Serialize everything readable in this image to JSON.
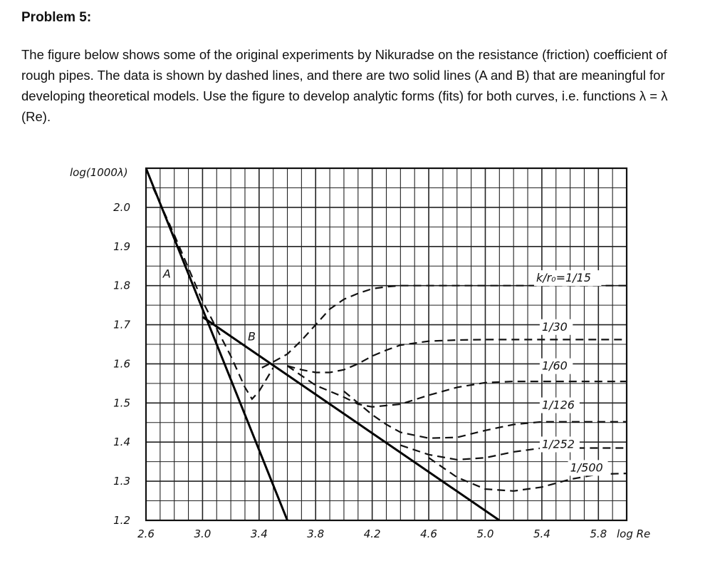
{
  "problem": {
    "title": "Problem 5:",
    "text": "The figure below shows some of the original experiments by Nikuradse on the resistance (friction) coefficient of rough pipes. The data is shown by dashed lines, and there are two solid lines (A and B) that are meaningful for developing theoretical models. Use the figure to develop analytic forms (fits) for both curves, i.e. functions  λ = λ (Re)."
  },
  "chart_data": {
    "type": "line",
    "title": "",
    "xlabel": "log Re",
    "ylabel": "log(1000λ)",
    "xlim": [
      2.6,
      6.0
    ],
    "ylim": [
      1.2,
      2.1
    ],
    "grid": true,
    "x_ticks": [
      "2.6",
      "3.0",
      "3.4",
      "3.8",
      "4.2",
      "4.6",
      "5.0",
      "5.4",
      "5.8"
    ],
    "y_ticks": [
      "1.2",
      "1.3",
      "1.4",
      "1.5",
      "1.6",
      "1.7",
      "1.8",
      "1.9",
      "2.0"
    ],
    "solid_lines": [
      {
        "name": "A",
        "x": [
          2.6,
          3.6
        ],
        "y": [
          2.1,
          1.2
        ]
      },
      {
        "name": "B",
        "x": [
          3.0,
          5.1
        ],
        "y": [
          1.72,
          1.2
        ]
      }
    ],
    "dashed_series": [
      {
        "name": "k/r₀=1/15",
        "x": [
          3.42,
          3.5,
          3.6,
          3.7,
          3.8,
          3.9,
          4.0,
          4.1,
          4.2,
          4.3,
          4.4,
          4.6,
          5.0,
          6.0
        ],
        "y": [
          1.59,
          1.605,
          1.625,
          1.66,
          1.7,
          1.74,
          1.765,
          1.78,
          1.792,
          1.797,
          1.8,
          1.8,
          1.8,
          1.8
        ]
      },
      {
        "name": "1/30",
        "x": [
          3.6,
          3.7,
          3.8,
          3.9,
          4.0,
          4.1,
          4.2,
          4.3,
          4.4,
          4.6,
          4.8,
          5.0,
          6.0
        ],
        "y": [
          1.595,
          1.585,
          1.578,
          1.578,
          1.585,
          1.6,
          1.62,
          1.635,
          1.648,
          1.658,
          1.661,
          1.662,
          1.662
        ]
      },
      {
        "name": "1/60",
        "x": [
          3.6,
          3.8,
          4.0,
          4.1,
          4.2,
          4.4,
          4.6,
          4.8,
          5.0,
          5.2,
          6.0
        ],
        "y": [
          1.595,
          1.545,
          1.515,
          1.497,
          1.49,
          1.497,
          1.52,
          1.54,
          1.552,
          1.555,
          1.555
        ]
      },
      {
        "name": "1/126",
        "x": [
          4.0,
          4.1,
          4.2,
          4.3,
          4.4,
          4.6,
          4.8,
          5.0,
          5.2,
          5.4,
          6.0
        ],
        "y": [
          1.53,
          1.5,
          1.47,
          1.445,
          1.425,
          1.41,
          1.412,
          1.43,
          1.445,
          1.452,
          1.452
        ]
      },
      {
        "name": "1/252",
        "x": [
          4.4,
          4.6,
          4.8,
          5.0,
          5.2,
          5.4,
          6.0
        ],
        "y": [
          1.392,
          1.368,
          1.355,
          1.36,
          1.375,
          1.385,
          1.385
        ]
      },
      {
        "name": "1/500",
        "x": [
          4.6,
          4.8,
          5.0,
          5.2,
          5.4,
          5.6,
          5.8,
          6.0
        ],
        "y": [
          1.36,
          1.31,
          1.28,
          1.275,
          1.285,
          1.305,
          1.318,
          1.32
        ]
      },
      {
        "name": "",
        "x": [
          2.65,
          2.8,
          3.0,
          3.2,
          3.3,
          3.35,
          3.4,
          3.45,
          3.5
        ],
        "y": [
          2.05,
          1.93,
          1.76,
          1.62,
          1.54,
          1.51,
          1.53,
          1.56,
          1.59
        ]
      }
    ],
    "curve_labels": [
      {
        "text": "A",
        "x": 2.72,
        "y": 1.82
      },
      {
        "text": "B",
        "x": 3.32,
        "y": 1.66
      },
      {
        "text": "k/r₀=1/15",
        "x": 5.36,
        "y": 1.81
      },
      {
        "text": "1/30",
        "x": 5.4,
        "y": 1.685
      },
      {
        "text": "1/60",
        "x": 5.4,
        "y": 1.585
      },
      {
        "text": "1/126",
        "x": 5.4,
        "y": 1.485
      },
      {
        "text": "1/252",
        "x": 5.4,
        "y": 1.385
      },
      {
        "text": "1/500",
        "x": 5.6,
        "y": 1.325
      }
    ]
  }
}
